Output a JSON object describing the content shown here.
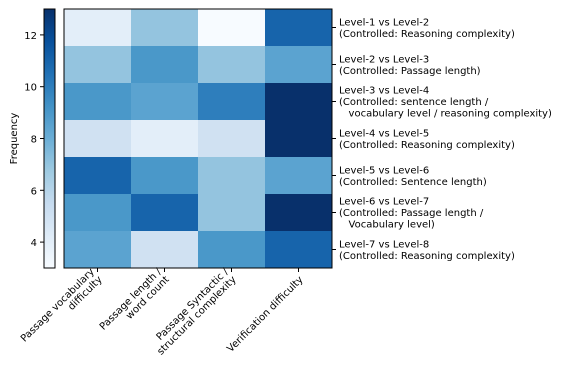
{
  "chart_data": {
    "type": "heatmap",
    "colormap": "Blues",
    "x_categories": [
      [
        "Passage vocabulary",
        "difficulty"
      ],
      [
        "Passage length /",
        "word count"
      ],
      [
        "Passage Syntactic /",
        "structural complexity"
      ],
      [
        "Verification difficulty"
      ]
    ],
    "y_categories": [
      [
        "Level-1 vs Level-2",
        "(Controlled: Reasoning complexity)"
      ],
      [
        "Level-2 vs Level-3",
        "(Controlled: Passage length)"
      ],
      [
        "Level-3 vs Level-4",
        "(Controlled: sentence length /",
        "   vocabulary level / reasoning complexity)"
      ],
      [
        "Level-4 vs Level-5",
        "(Controlled: Reasoning complexity)"
      ],
      [
        "Level-5 vs Level-6",
        "(Controlled: Sentence length)"
      ],
      [
        "Level-6 vs Level-7",
        "(Controlled: Passage length /",
        "   Vocabulary level)"
      ],
      [
        "Level-7 vs Level-8",
        "(Controlled: Reasoning complexity)"
      ]
    ],
    "values": [
      [
        4,
        7,
        3,
        11
      ],
      [
        7,
        9,
        7,
        8.5
      ],
      [
        9,
        8.5,
        10,
        13
      ],
      [
        5,
        4,
        5,
        13
      ],
      [
        11,
        9,
        7,
        8.5
      ],
      [
        9,
        11,
        7,
        13
      ],
      [
        8.5,
        5,
        9,
        11
      ]
    ],
    "colorbar": {
      "label": "Frequency",
      "min": 3,
      "max": 13,
      "ticks": [
        4,
        6,
        8,
        10,
        12
      ]
    }
  }
}
